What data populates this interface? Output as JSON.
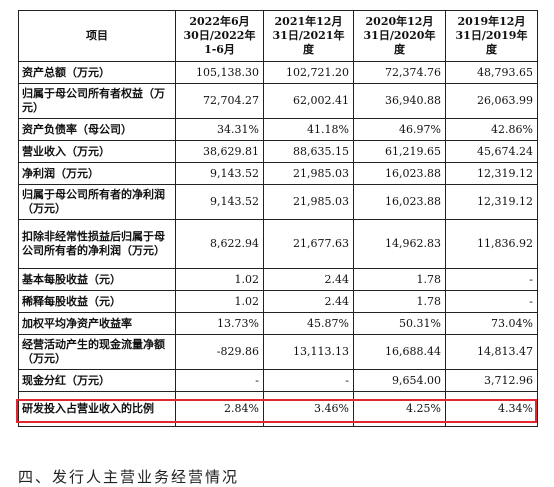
{
  "table": {
    "headers": {
      "item": "项目",
      "col1": [
        "2022年6月",
        "30日/2022年",
        "1-6月"
      ],
      "col2": [
        "2021年12月",
        "31日/2021年",
        "度"
      ],
      "col3": [
        "2020年12月",
        "31日/2020年",
        "度"
      ],
      "col4": [
        "2019年12月",
        "31日/2019年",
        "度"
      ]
    },
    "rows": [
      {
        "label": "资产总额（万元）",
        "values": [
          "105,138.30",
          "102,721.20",
          "72,374.76",
          "48,793.65"
        ]
      },
      {
        "label": "归属于母公司所有者权益（万元）",
        "values": [
          "72,704.27",
          "62,002.41",
          "36,940.88",
          "26,063.99"
        ]
      },
      {
        "label": "资产负债率（母公司）",
        "values": [
          "34.31%",
          "41.18%",
          "46.97%",
          "42.86%"
        ]
      },
      {
        "label": "营业收入（万元）",
        "values": [
          "38,629.81",
          "88,635.15",
          "61,219.65",
          "45,674.24"
        ]
      },
      {
        "label": "净利润（万元）",
        "values": [
          "9,143.52",
          "21,985.03",
          "16,023.88",
          "12,319.12"
        ]
      },
      {
        "label": "归属于母公司所有者的净利润（万元）",
        "values": [
          "9,143.52",
          "21,985.03",
          "16,023.88",
          "12,319.12"
        ]
      },
      {
        "label": "扣除非经常性损益后归属于母公司所有者的净利润（万元）",
        "values": [
          "8,622.94",
          "21,677.63",
          "14,962.83",
          "11,836.92"
        ]
      },
      {
        "label": "基本每股收益（元）",
        "values": [
          "1.02",
          "2.44",
          "1.78",
          "-"
        ]
      },
      {
        "label": "稀释每股收益（元）",
        "values": [
          "1.02",
          "2.44",
          "1.78",
          "-"
        ]
      },
      {
        "label": "加权平均净资产收益率",
        "values": [
          "13.73%",
          "45.87%",
          "50.31%",
          "73.04%"
        ]
      },
      {
        "label": "经营活动产生的现金流量净额（万元）",
        "values": [
          "-829.86",
          "13,113.13",
          "16,688.44",
          "14,813.47"
        ]
      },
      {
        "label": "现金分红（万元）",
        "values": [
          "-",
          "-",
          "9,654.00",
          "3,712.96"
        ]
      },
      {
        "label": "研发投入占营业收入的比例",
        "values": [
          "2.84%",
          "3.46%",
          "4.25%",
          "4.34%"
        ]
      }
    ]
  },
  "footer": {
    "text": "四、发行人主营业务经营情况"
  },
  "colors": {
    "highlight_border": "#e3262f"
  }
}
